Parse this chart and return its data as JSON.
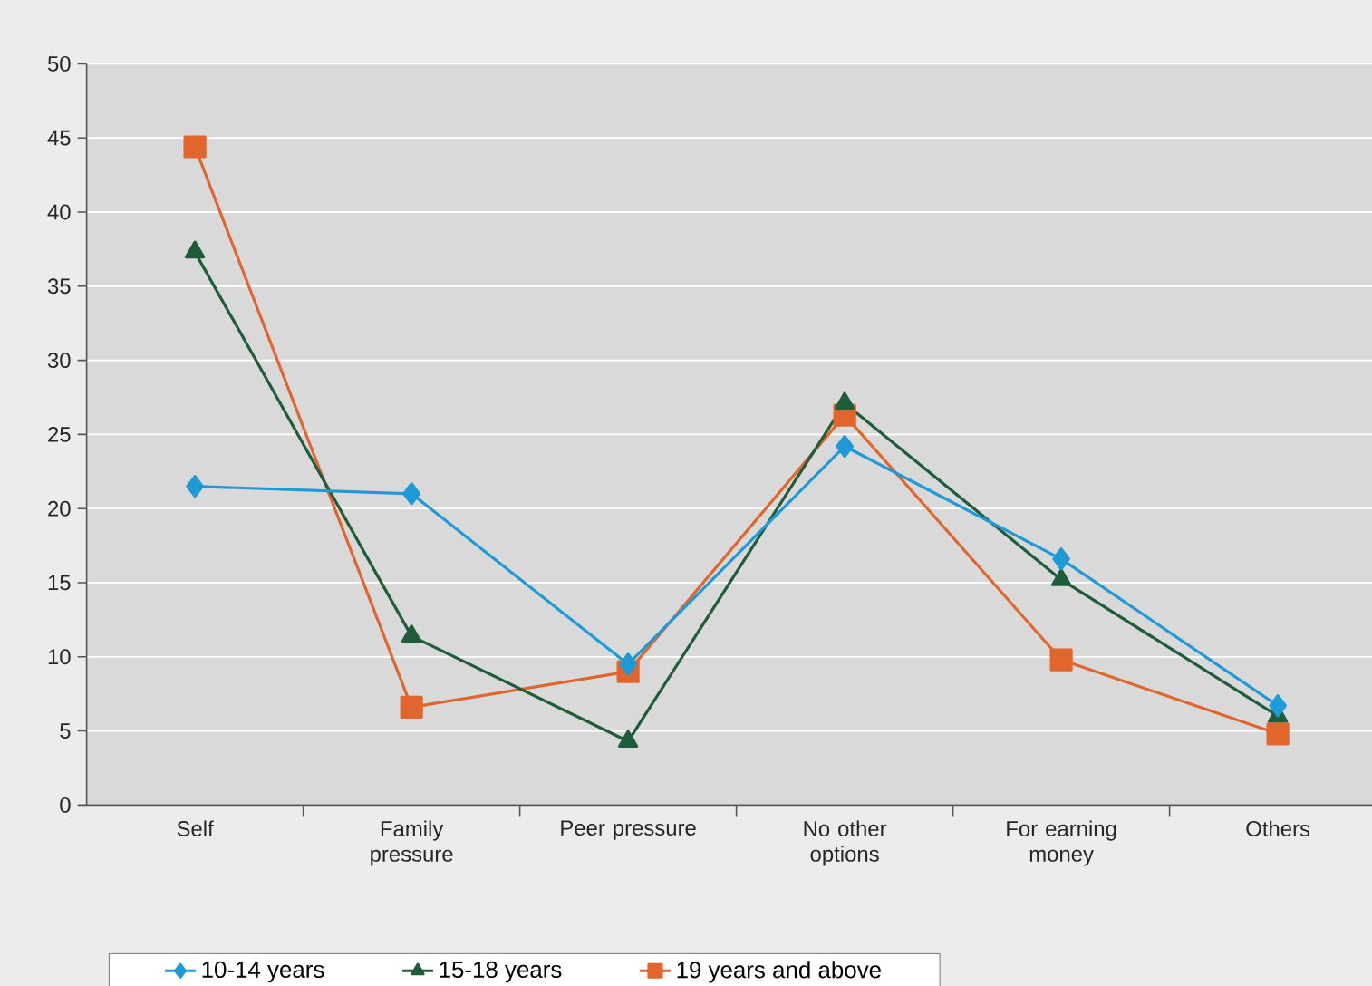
{
  "chart_data": {
    "type": "line",
    "categories": [
      "Self",
      "Family pressure",
      "Peer pressure",
      "No other options",
      "For earning money",
      "Others"
    ],
    "series": [
      {
        "name": "10-14 years",
        "color": "#1e9ad6",
        "marker": "diamond",
        "values": [
          21.5,
          21.0,
          9.5,
          24.2,
          16.6,
          6.7
        ]
      },
      {
        "name": "15-18 years",
        "color": "#1f5c3a",
        "marker": "triangle",
        "values": [
          37.3,
          11.4,
          4.3,
          27.1,
          15.2,
          6.0
        ]
      },
      {
        "name": "19 years and above",
        "color": "#e0662e",
        "marker": "square",
        "values": [
          44.4,
          6.6,
          9.0,
          26.3,
          9.8,
          4.8
        ]
      }
    ],
    "ylim": [
      0,
      50
    ],
    "yticks": [
      0,
      5,
      10,
      15,
      20,
      25,
      30,
      35,
      40,
      45,
      50
    ],
    "grid": "y",
    "legend": "bottom",
    "line_style": "solid"
  }
}
